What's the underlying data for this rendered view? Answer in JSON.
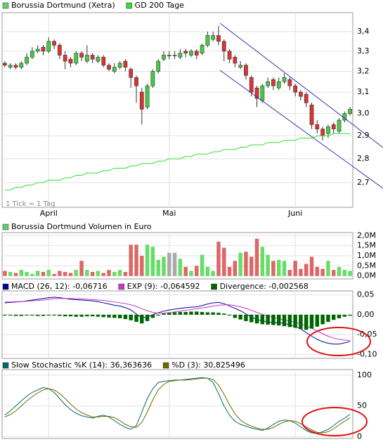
{
  "chart_data": [
    {
      "type": "candlestick",
      "categories": [
        null,
        null,
        null,
        null,
        null,
        null,
        null,
        null,
        "April",
        null,
        null,
        null,
        null,
        null,
        null,
        null,
        null,
        null,
        null,
        null,
        null,
        null,
        null,
        null,
        null,
        null,
        null,
        null,
        null,
        null,
        "Mai",
        null,
        null,
        null,
        null,
        null,
        null,
        null,
        null,
        null,
        null,
        null,
        null,
        null,
        null,
        null,
        null,
        null,
        null,
        null,
        null,
        null,
        null,
        "Juni",
        null,
        null,
        null,
        null,
        null,
        null,
        null,
        null,
        null,
        null
      ],
      "annotation": "1 Tick = 1 Tag",
      "ylim": [
        2.6,
        3.5
      ],
      "log_scale": true,
      "grid": true,
      "yticks": [
        {
          "value": 2.7,
          "label": "2,7"
        },
        {
          "value": 2.8,
          "label": "2,8"
        },
        {
          "value": 2.9,
          "label": "2,9"
        },
        {
          "value": 3.0,
          "label": "3,0"
        },
        {
          "value": 3.1,
          "label": "3,1"
        },
        {
          "value": 3.2,
          "label": "3,2"
        },
        {
          "value": 3.3,
          "label": "3,3"
        },
        {
          "value": 3.4,
          "label": "3,4"
        }
      ],
      "series": [
        {
          "name": "Borussia Dortmund (Xetra)",
          "color": "#66cc66",
          "up_color": "#44cc44",
          "down_color": "#dd3333",
          "open": [
            3.24,
            3.22,
            3.23,
            3.22,
            3.24,
            3.27,
            3.3,
            3.32,
            3.3,
            3.35,
            3.33,
            3.28,
            3.26,
            3.24,
            3.29,
            3.25,
            3.28,
            3.25,
            3.27,
            3.23,
            3.2,
            3.22,
            3.25,
            3.21,
            3.17,
            3.1,
            3.03,
            3.13,
            3.2,
            3.26,
            3.28,
            3.28,
            3.27,
            3.3,
            3.28,
            3.3,
            3.29,
            3.33,
            3.36,
            3.38,
            3.35,
            3.3,
            3.27,
            3.22,
            3.23,
            3.17,
            3.12,
            3.06,
            3.13,
            3.16,
            3.12,
            3.15,
            3.16,
            3.13,
            3.1,
            3.09,
            3.04,
            2.95,
            2.93,
            2.91,
            2.95,
            2.92,
            2.97,
            3.0
          ],
          "high": [
            3.25,
            3.24,
            3.24,
            3.25,
            3.29,
            3.32,
            3.33,
            3.33,
            3.37,
            3.36,
            3.34,
            3.3,
            3.27,
            3.3,
            3.3,
            3.33,
            3.29,
            3.28,
            3.28,
            3.24,
            3.24,
            3.25,
            3.26,
            3.22,
            3.18,
            3.12,
            3.14,
            3.21,
            3.26,
            3.3,
            3.3,
            3.3,
            3.31,
            3.31,
            3.31,
            3.31,
            3.34,
            3.4,
            3.4,
            3.43,
            3.36,
            3.31,
            3.28,
            3.25,
            3.24,
            3.18,
            3.13,
            3.14,
            3.17,
            3.17,
            3.17,
            3.19,
            3.17,
            3.14,
            3.11,
            3.1,
            3.05,
            2.97,
            2.94,
            2.95,
            2.96,
            2.98,
            3.01,
            3.03
          ],
          "low": [
            3.22,
            3.21,
            3.21,
            3.21,
            3.23,
            3.26,
            3.29,
            3.28,
            3.29,
            3.31,
            3.26,
            3.21,
            3.22,
            3.23,
            3.25,
            3.24,
            3.24,
            3.24,
            3.22,
            3.2,
            3.19,
            3.21,
            3.2,
            3.12,
            3.05,
            2.95,
            3.02,
            3.12,
            3.19,
            3.25,
            3.26,
            3.26,
            3.26,
            3.27,
            3.27,
            3.26,
            3.28,
            3.32,
            3.35,
            3.33,
            3.25,
            3.24,
            3.22,
            3.21,
            3.16,
            3.08,
            3.03,
            3.05,
            3.12,
            3.11,
            3.11,
            3.14,
            3.11,
            3.08,
            3.06,
            3.03,
            2.93,
            2.91,
            2.88,
            2.89,
            2.91,
            2.91,
            2.96,
            2.99
          ],
          "close": [
            3.23,
            3.23,
            3.22,
            3.24,
            3.27,
            3.3,
            3.31,
            3.3,
            3.35,
            3.33,
            3.28,
            3.25,
            3.24,
            3.29,
            3.27,
            3.28,
            3.26,
            3.27,
            3.23,
            3.21,
            3.22,
            3.24,
            3.22,
            3.17,
            3.13,
            3.02,
            3.13,
            3.2,
            3.25,
            3.28,
            3.28,
            3.28,
            3.29,
            3.29,
            3.3,
            3.28,
            3.33,
            3.38,
            3.38,
            3.35,
            3.3,
            3.26,
            3.24,
            3.23,
            3.18,
            3.1,
            3.07,
            3.13,
            3.15,
            3.13,
            3.15,
            3.17,
            3.13,
            3.1,
            3.08,
            3.05,
            2.95,
            2.93,
            2.9,
            2.94,
            2.93,
            2.97,
            3.0,
            3.02
          ]
        },
        {
          "name": "GD 200 Tage",
          "color": "#33dd33",
          "values": [
            2.67,
            2.67,
            2.68,
            2.68,
            2.69,
            2.69,
            2.7,
            2.7,
            2.71,
            2.71,
            2.71,
            2.72,
            2.72,
            2.73,
            2.73,
            2.74,
            2.74,
            2.74,
            2.75,
            2.75,
            2.76,
            2.76,
            2.76,
            2.77,
            2.77,
            2.78,
            2.78,
            2.78,
            2.79,
            2.79,
            2.8,
            2.8,
            2.8,
            2.81,
            2.81,
            2.82,
            2.82,
            2.82,
            2.83,
            2.83,
            2.84,
            2.84,
            2.84,
            2.85,
            2.85,
            2.86,
            2.86,
            2.86,
            2.87,
            2.87,
            2.87,
            2.88,
            2.88,
            2.88,
            2.89,
            2.89,
            2.89,
            2.9,
            2.9,
            2.9,
            2.91,
            2.91,
            2.91,
            2.91
          ]
        }
      ]
    },
    {
      "type": "bar",
      "ylim": [
        -0.15,
        2.15
      ],
      "grid": true,
      "up_color": "#66dd66",
      "down_color": "#dd6666",
      "flat_color": "#aaaaaa",
      "yticks": [
        {
          "value": 0,
          "label": "0,0M"
        },
        {
          "value": 0.5,
          "label": "0,5M"
        },
        {
          "value": 1.0,
          "label": "1,0M"
        },
        {
          "value": 1.5,
          "label": "1,5M"
        },
        {
          "value": 2.0,
          "label": "2,0M"
        }
      ],
      "series": [
        {
          "name": "Borussia Dortmund Volumen in Euro",
          "color": "#66cc66",
          "values": [
            0.25,
            0.2,
            0.15,
            0.3,
            0.2,
            0.1,
            0.25,
            0.2,
            0.3,
            0.1,
            0.25,
            0.2,
            0.15,
            0.3,
            0.75,
            0.3,
            0.2,
            0.25,
            0.15,
            0.3,
            0.2,
            0.3,
            0.2,
            1.55,
            1.55,
            1.0,
            1.55,
            1.45,
            0.8,
            0.95,
            1.15,
            1.15,
            0.85,
            0.45,
            0.25,
            0.5,
            1.05,
            0.45,
            0.25,
            1.7,
            1.4,
            0.45,
            0.75,
            1.15,
            1.2,
            0.95,
            1.85,
            1.45,
            1.05,
            0.75,
            0.8,
            0.75,
            0.3,
            0.75,
            0.35,
            0.6,
            0.95,
            0.45,
            0.35,
            0.75,
            0.3,
            0.45,
            0.3,
            0.25
          ]
        }
      ]
    },
    {
      "type": "line",
      "ylim": [
        -0.11,
        0.06
      ],
      "grid": true,
      "yticks": [
        {
          "value": -0.1,
          "label": "-0,10"
        },
        {
          "value": -0.05,
          "label": "-0,05"
        },
        {
          "value": 0,
          "label": "0,00"
        },
        {
          "value": 0.05,
          "label": "0,05"
        }
      ],
      "series": [
        {
          "name": "MACD (26, 12): -0,06716",
          "color": "#000099",
          "values": [
            0.03,
            0.031,
            0.032,
            0.033,
            0.035,
            0.037,
            0.039,
            0.041,
            0.043,
            0.044,
            0.043,
            0.041,
            0.039,
            0.038,
            0.037,
            0.036,
            0.035,
            0.033,
            0.03,
            0.027,
            0.024,
            0.022,
            0.018,
            0.012,
            0.002,
            -0.008,
            -0.006,
            0.0,
            0.005,
            0.009,
            0.012,
            0.014,
            0.016,
            0.018,
            0.019,
            0.02,
            0.023,
            0.027,
            0.03,
            0.031,
            0.028,
            0.022,
            0.016,
            0.01,
            0.002,
            -0.006,
            -0.012,
            -0.016,
            -0.018,
            -0.02,
            -0.02,
            -0.022,
            -0.025,
            -0.03,
            -0.036,
            -0.045,
            -0.054,
            -0.062,
            -0.068,
            -0.072,
            -0.074,
            -0.074,
            -0.071,
            -0.06716
          ]
        },
        {
          "name": "EXP (9): -0,064592",
          "color": "#cc33cc",
          "values": [
            0.032,
            0.032,
            0.033,
            0.033,
            0.034,
            0.035,
            0.036,
            0.037,
            0.039,
            0.04,
            0.041,
            0.041,
            0.041,
            0.04,
            0.04,
            0.039,
            0.038,
            0.037,
            0.036,
            0.034,
            0.032,
            0.03,
            0.028,
            0.025,
            0.021,
            0.015,
            0.01,
            0.006,
            0.004,
            0.004,
            0.005,
            0.007,
            0.009,
            0.011,
            0.013,
            0.015,
            0.017,
            0.019,
            0.022,
            0.024,
            0.025,
            0.025,
            0.023,
            0.02,
            0.016,
            0.011,
            0.006,
            0.001,
            -0.003,
            -0.007,
            -0.01,
            -0.013,
            -0.016,
            -0.019,
            -0.023,
            -0.028,
            -0.034,
            -0.041,
            -0.048,
            -0.054,
            -0.059,
            -0.062,
            -0.064,
            -0.064592
          ]
        },
        {
          "name": "Divergence: -0,002568",
          "color": "#006600",
          "style": "bar",
          "values": [
            -0.002,
            -0.002,
            -0.003,
            -0.003,
            -0.002,
            -0.002,
            -0.003,
            -0.003,
            -0.002,
            -0.002,
            -0.003,
            -0.004,
            -0.004,
            -0.005,
            -0.005,
            -0.004,
            -0.004,
            -0.005,
            -0.006,
            -0.007,
            -0.008,
            -0.009,
            -0.011,
            -0.014,
            -0.018,
            -0.022,
            -0.016,
            -0.008,
            -0.002,
            0.003,
            0.005,
            0.006,
            0.007,
            0.007,
            0.008,
            0.008,
            0.007,
            0.006,
            0.006,
            0.005,
            0.003,
            -0.002,
            -0.008,
            -0.012,
            -0.016,
            -0.019,
            -0.022,
            -0.024,
            -0.025,
            -0.026,
            -0.027,
            -0.029,
            -0.031,
            -0.033,
            -0.036,
            -0.038,
            -0.035,
            -0.03,
            -0.024,
            -0.018,
            -0.013,
            -0.009,
            -0.005,
            -0.002568
          ]
        }
      ]
    },
    {
      "type": "line",
      "ylim": [
        -3,
        109
      ],
      "grid": true,
      "yticks": [
        0,
        50,
        100
      ],
      "series": [
        {
          "name": "Slow Stochastic %K (14): 36,363636",
          "color": "#006b6b",
          "values": [
            35,
            42,
            50,
            58,
            66,
            72,
            76,
            80,
            78,
            72,
            62,
            52,
            44,
            38,
            34,
            32,
            30,
            33,
            35,
            32,
            26,
            20,
            15,
            12,
            18,
            40,
            62,
            78,
            88,
            90,
            91,
            92,
            92,
            93,
            94,
            95,
            96,
            95,
            88,
            70,
            50,
            35,
            25,
            20,
            17,
            14,
            12,
            10,
            14,
            20,
            25,
            27,
            26,
            22,
            16,
            10,
            6,
            5,
            8,
            12,
            18,
            25,
            30,
            36.363636
          ]
        },
        {
          "name": "%D (3): 30,825496",
          "color": "#6b6b00",
          "values": [
            32,
            36,
            42,
            50,
            58,
            65,
            71,
            76,
            78,
            76,
            70,
            62,
            53,
            45,
            39,
            35,
            32,
            32,
            33,
            33,
            31,
            26,
            20,
            16,
            15,
            23,
            40,
            60,
            76,
            85,
            90,
            91,
            92,
            92,
            93,
            94,
            95,
            95,
            93,
            84,
            69,
            52,
            37,
            27,
            21,
            17,
            14,
            12,
            12,
            15,
            20,
            24,
            26,
            25,
            21,
            16,
            11,
            7,
            6,
            8,
            13,
            19,
            25,
            30.825496
          ]
        }
      ]
    }
  ]
}
